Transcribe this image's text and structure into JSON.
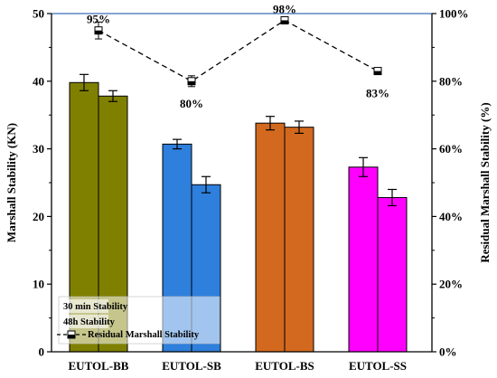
{
  "chart_data": {
    "type": "bar",
    "categories": [
      "EUTOL-BB",
      "EUTOL-SB",
      "EUTOL-BS",
      "EUTOL-SS"
    ],
    "series": [
      {
        "name": "30 min Stability",
        "values": [
          39.8,
          30.7,
          33.8,
          27.3
        ],
        "errors": [
          1.2,
          0.7,
          1.0,
          1.4
        ]
      },
      {
        "name": "48h Stability",
        "values": [
          37.8,
          24.7,
          33.2,
          22.8
        ],
        "errors": [
          0.8,
          1.2,
          0.9,
          1.2
        ]
      }
    ],
    "line_series": {
      "name": "Residual Marshall Stability",
      "values": [
        95,
        80,
        98,
        83
      ],
      "errors": [
        2.5,
        1.6,
        1.0,
        1.0
      ],
      "labels": [
        "95%",
        "80%",
        "98%",
        "83%"
      ]
    },
    "bar_colors": [
      "#808000",
      "#2f7fdc",
      "#d2691e",
      "#ff00ff"
    ],
    "ylabel": "Marshall Stability (KN)",
    "ylabel_right": "Residual Marshall Stability (%)",
    "ylim": [
      0,
      50
    ],
    "ylim_right": [
      0,
      100
    ],
    "yticks": [
      "0",
      "10",
      "20",
      "30",
      "40",
      "50"
    ],
    "yticks_right": [
      "0%",
      "20%",
      "40%",
      "60%",
      "80%",
      "100%"
    ],
    "legend_position": "bottom-left",
    "grid": false
  }
}
